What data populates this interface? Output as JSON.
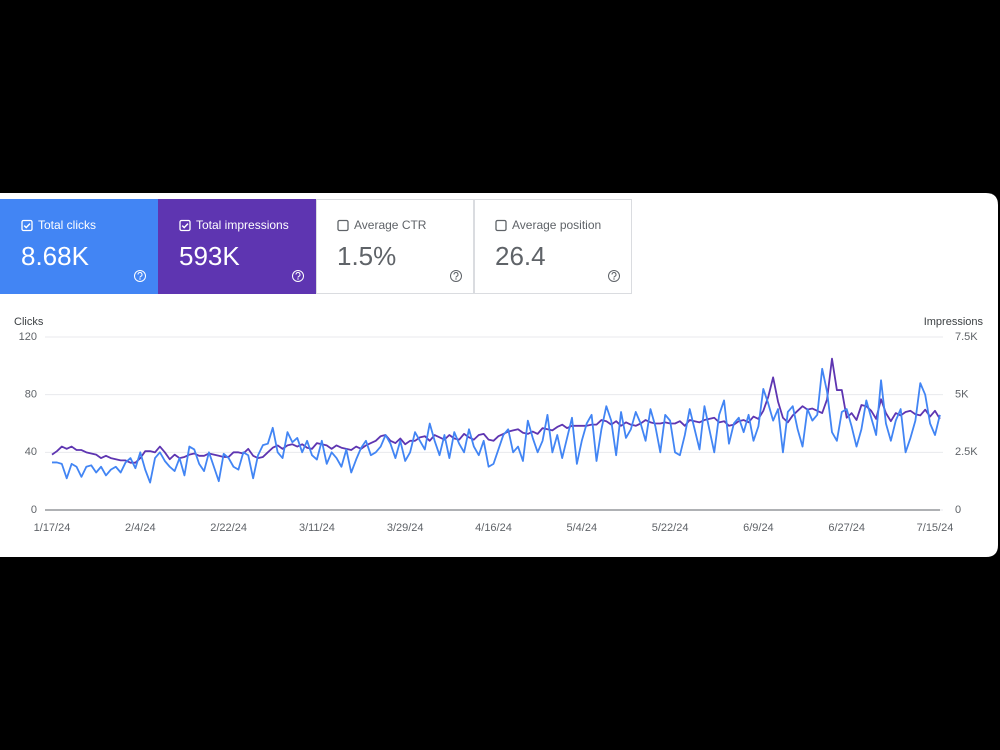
{
  "cards": [
    {
      "label": "Total clicks",
      "value": "8.68K",
      "checked": true,
      "color": "#4285f4"
    },
    {
      "label": "Total impressions",
      "value": "593K",
      "checked": true,
      "color": "#5e35b1"
    },
    {
      "label": "Average CTR",
      "value": "1.5%",
      "checked": false,
      "color": "#ffffff"
    },
    {
      "label": "Average position",
      "value": "26.4",
      "checked": false,
      "color": "#ffffff"
    }
  ],
  "chart_data": {
    "type": "line",
    "y_label": "Clicks",
    "y2_label": "Impressions",
    "categories": [
      "1/17/24",
      null,
      null,
      null,
      null,
      null,
      null,
      null,
      null,
      null,
      null,
      null,
      null,
      null,
      null,
      null,
      null,
      null,
      "2/4/24",
      null,
      null,
      null,
      null,
      null,
      null,
      null,
      null,
      null,
      null,
      null,
      null,
      null,
      null,
      null,
      null,
      null,
      "2/22/24",
      null,
      null,
      null,
      null,
      null,
      null,
      null,
      null,
      null,
      null,
      null,
      null,
      null,
      null,
      null,
      null,
      null,
      "3/11/24",
      null,
      null,
      null,
      null,
      null,
      null,
      null,
      null,
      null,
      null,
      null,
      null,
      null,
      null,
      null,
      null,
      null,
      "3/29/24",
      null,
      null,
      null,
      null,
      null,
      null,
      null,
      null,
      null,
      null,
      null,
      null,
      null,
      null,
      null,
      null,
      null,
      "4/16/24",
      null,
      null,
      null,
      null,
      null,
      null,
      null,
      null,
      null,
      null,
      null,
      null,
      null,
      null,
      null,
      null,
      null,
      "5/4/24",
      null,
      null,
      null,
      null,
      null,
      null,
      null,
      null,
      null,
      null,
      null,
      null,
      null,
      null,
      null,
      null,
      null,
      "5/22/24",
      null,
      null,
      null,
      null,
      null,
      null,
      null,
      null,
      null,
      null,
      null,
      null,
      null,
      null,
      null,
      null,
      null,
      "6/9/24",
      null,
      null,
      null,
      null,
      null,
      null,
      null,
      null,
      null,
      null,
      null,
      null,
      null,
      null,
      null,
      null,
      null,
      "6/27/24",
      null,
      null,
      null,
      null,
      null,
      null,
      null,
      null,
      null,
      null,
      null,
      null,
      null,
      null,
      null,
      null,
      null,
      "7/15/24",
      null
    ],
    "series": [
      {
        "color": "#5e35b1",
        "axis": "y2",
        "values": [
          2400,
          2550,
          2750,
          2650,
          2750,
          2600,
          2600,
          2500,
          2450,
          2400,
          2250,
          2350,
          2250,
          2200,
          2150,
          2150,
          2050,
          2050,
          2250,
          2550,
          2550,
          2500,
          2750,
          2500,
          2200,
          2400,
          2250,
          2300,
          2400,
          2450,
          2350,
          2350,
          2450,
          2400,
          2350,
          2300,
          2300,
          2500,
          2500,
          2450,
          2650,
          2350,
          2250,
          2300,
          2500,
          2700,
          2800,
          2650,
          2800,
          2850,
          2750,
          2850,
          2700,
          2650,
          2900,
          2850,
          2800,
          2650,
          2800,
          2700,
          2650,
          2600,
          2750,
          2650,
          2800,
          2900,
          3000,
          3200,
          3250,
          3000,
          2900,
          3100,
          2850,
          3000,
          3000,
          3150,
          3200,
          3000,
          3250,
          3150,
          3050,
          3250,
          3100,
          3050,
          3300,
          3150,
          3050,
          3250,
          3300,
          3050,
          3000,
          3200,
          3300,
          3400,
          3450,
          3500,
          3350,
          3300,
          3400,
          3300,
          3550,
          3500,
          3450,
          3600,
          3700,
          3550,
          3650,
          3650,
          3650,
          3650,
          3700,
          3700,
          3900,
          3850,
          3700,
          3850,
          3650,
          3800,
          3700,
          3650,
          3750,
          3900,
          3800,
          3750,
          3750,
          3800,
          3750,
          3750,
          3850,
          3650,
          3900,
          3850,
          3800,
          3900,
          3950,
          4000,
          3800,
          3850,
          3650,
          3700,
          3850,
          3900,
          3800,
          4050,
          3950,
          4300,
          4900,
          5750,
          4700,
          4000,
          3800,
          4100,
          4300,
          4500,
          4350,
          4400,
          4300,
          4200,
          4800,
          6560,
          5200,
          5200,
          4000,
          4200,
          3900,
          4550,
          4500,
          4300,
          3950,
          4800,
          4200,
          3850,
          4200,
          4100,
          4250,
          4300,
          4150,
          4100,
          4350,
          4050,
          4300,
          3950
        ]
      },
      {
        "color": "#4285f4",
        "axis": "y",
        "values": [
          33,
          33,
          32,
          22,
          32,
          30,
          23,
          30,
          31,
          26,
          30,
          24,
          28,
          30,
          26,
          33,
          36,
          29,
          40,
          28,
          19,
          36,
          40,
          34,
          30,
          27,
          36,
          24,
          44,
          42,
          32,
          27,
          40,
          30,
          20,
          39,
          36,
          30,
          28,
          40,
          38,
          22,
          38,
          45,
          46,
          57,
          40,
          36,
          54,
          47,
          50,
          40,
          48,
          38,
          35,
          48,
          32,
          40,
          36,
          30,
          42,
          26,
          35,
          43,
          48,
          38,
          40,
          44,
          52,
          46,
          36,
          48,
          34,
          40,
          54,
          48,
          42,
          60,
          48,
          38,
          52,
          36,
          54,
          46,
          40,
          56,
          44,
          38,
          48,
          30,
          32,
          42,
          52,
          56,
          40,
          44,
          34,
          62,
          50,
          40,
          48,
          66,
          40,
          52,
          36,
          50,
          64,
          32,
          48,
          60,
          66,
          34,
          56,
          72,
          62,
          38,
          68,
          50,
          56,
          68,
          60,
          48,
          70,
          58,
          40,
          66,
          62,
          40,
          38,
          52,
          70,
          56,
          42,
          72,
          56,
          40,
          66,
          76,
          46,
          60,
          64,
          54,
          66,
          48,
          58,
          84,
          74,
          62,
          70,
          40,
          68,
          72,
          56,
          44,
          70,
          62,
          66,
          98,
          82,
          54,
          48,
          68,
          70,
          58,
          44,
          56,
          76,
          64,
          52,
          90,
          60,
          48,
          62,
          70,
          40,
          50,
          62,
          88,
          80,
          60,
          52,
          66
        ]
      }
    ],
    "ylim": [
      0,
      120
    ],
    "yticks": [
      0,
      40,
      80,
      120
    ],
    "y2lim": [
      0,
      7500
    ],
    "y2ticks": [
      0,
      {
        "value": 2500,
        "label": "2.5K"
      },
      {
        "value": 5000,
        "label": "5K"
      },
      {
        "value": 7500,
        "label": "7.5K"
      }
    ],
    "grid": true
  }
}
